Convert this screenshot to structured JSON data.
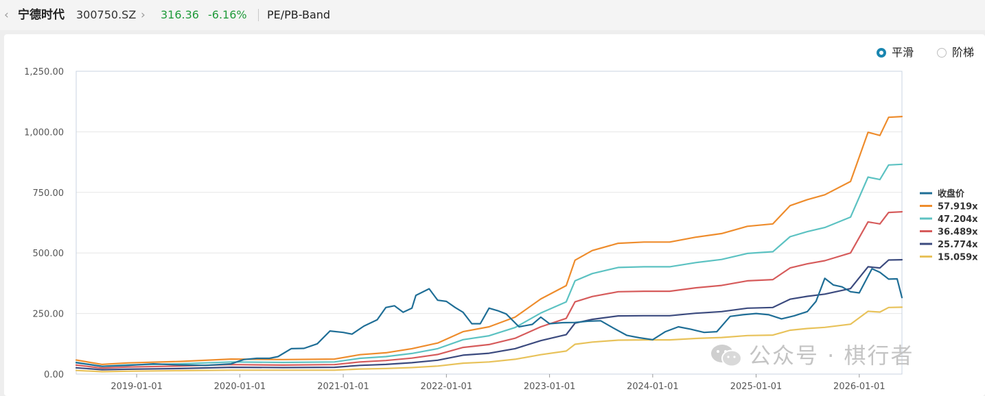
{
  "header": {
    "back_icon": "chevron-left-icon",
    "stock_name": "宁德时代",
    "stock_code": "300750.SZ",
    "forward_icon": "chevron-right-icon",
    "price": "316.36",
    "change_pct": "-6.16%",
    "change_color": "#1f9a3a",
    "view_title": "PE/PB-Band"
  },
  "toggle": {
    "options": [
      {
        "label": "平滑",
        "selected": true
      },
      {
        "label": "阶梯",
        "selected": false
      }
    ]
  },
  "watermark": {
    "icon": "wechat-icon",
    "text": "公众号 · 棋行者"
  },
  "chart_data": {
    "type": "line",
    "title": "",
    "xlabel": "",
    "ylabel": "",
    "ylim": [
      0,
      1250
    ],
    "yticks": [
      "0.00",
      "250.00",
      "500.00",
      "750.00",
      "1,000.00",
      "1,250.00"
    ],
    "xlim": [
      "2018-06-01",
      "2026-06-01"
    ],
    "xticks": [
      "2019-01-01",
      "2020-01-01",
      "2021-01-01",
      "2022-01-01",
      "2023-01-01",
      "2024-01-01",
      "2025-01-01",
      "2026-01-01"
    ],
    "grid": "horizontal",
    "legend_position": "right",
    "series": [
      {
        "name": "收盘价",
        "color": "#1f6e96",
        "points": [
          [
            "2018-06-01",
            47
          ],
          [
            "2018-09-01",
            32
          ],
          [
            "2018-12-01",
            36
          ],
          [
            "2019-03-01",
            42
          ],
          [
            "2019-06-01",
            38
          ],
          [
            "2019-09-01",
            36
          ],
          [
            "2019-12-01",
            42
          ],
          [
            "2020-01-15",
            60
          ],
          [
            "2020-03-01",
            65
          ],
          [
            "2020-04-15",
            65
          ],
          [
            "2020-05-15",
            72
          ],
          [
            "2020-07-01",
            105
          ],
          [
            "2020-08-15",
            106
          ],
          [
            "2020-10-01",
            125
          ],
          [
            "2020-11-15",
            178
          ],
          [
            "2021-01-01",
            172
          ],
          [
            "2021-02-01",
            165
          ],
          [
            "2021-03-15",
            198
          ],
          [
            "2021-05-01",
            224
          ],
          [
            "2021-06-01",
            275
          ],
          [
            "2021-07-01",
            282
          ],
          [
            "2021-08-01",
            255
          ],
          [
            "2021-09-01",
            272
          ],
          [
            "2021-09-15",
            325
          ],
          [
            "2021-11-01",
            352
          ],
          [
            "2021-12-01",
            305
          ],
          [
            "2022-01-01",
            300
          ],
          [
            "2022-02-01",
            275
          ],
          [
            "2022-03-01",
            255
          ],
          [
            "2022-04-01",
            208
          ],
          [
            "2022-05-01",
            208
          ],
          [
            "2022-06-01",
            272
          ],
          [
            "2022-07-01",
            262
          ],
          [
            "2022-08-01",
            248
          ],
          [
            "2022-09-15",
            195
          ],
          [
            "2022-11-01",
            205
          ],
          [
            "2022-12-01",
            235
          ],
          [
            "2023-01-01",
            208
          ],
          [
            "2023-02-15",
            212
          ],
          [
            "2023-04-01",
            213
          ],
          [
            "2023-05-15",
            218
          ],
          [
            "2023-07-01",
            220
          ],
          [
            "2023-08-15",
            190
          ],
          [
            "2023-10-01",
            160
          ],
          [
            "2023-11-15",
            150
          ],
          [
            "2024-01-01",
            142
          ],
          [
            "2024-02-15",
            175
          ],
          [
            "2024-04-01",
            195
          ],
          [
            "2024-05-15",
            185
          ],
          [
            "2024-07-01",
            172
          ],
          [
            "2024-08-15",
            175
          ],
          [
            "2024-10-01",
            238
          ],
          [
            "2024-11-15",
            245
          ],
          [
            "2025-01-01",
            250
          ],
          [
            "2025-02-15",
            245
          ],
          [
            "2025-04-01",
            228
          ],
          [
            "2025-05-15",
            240
          ],
          [
            "2025-07-01",
            258
          ],
          [
            "2025-08-01",
            300
          ],
          [
            "2025-09-01",
            395
          ],
          [
            "2025-10-01",
            368
          ],
          [
            "2025-11-01",
            360
          ],
          [
            "2025-12-01",
            340
          ],
          [
            "2026-01-01",
            335
          ],
          [
            "2026-02-15",
            435
          ],
          [
            "2026-03-15",
            420
          ],
          [
            "2026-04-15",
            392
          ],
          [
            "2026-05-15",
            393
          ],
          [
            "2026-06-01",
            316
          ]
        ]
      },
      {
        "name": "57.919x",
        "color": "#ee8c2c",
        "points": [
          [
            "2018-06-01",
            58
          ],
          [
            "2018-09-01",
            40
          ],
          [
            "2018-12-01",
            46
          ],
          [
            "2019-06-01",
            52
          ],
          [
            "2019-12-01",
            62
          ],
          [
            "2020-06-01",
            60
          ],
          [
            "2020-12-01",
            62
          ],
          [
            "2021-03-01",
            80
          ],
          [
            "2021-06-01",
            88
          ],
          [
            "2021-09-01",
            105
          ],
          [
            "2021-12-01",
            128
          ],
          [
            "2022-03-01",
            175
          ],
          [
            "2022-06-01",
            195
          ],
          [
            "2022-09-01",
            235
          ],
          [
            "2022-12-01",
            310
          ],
          [
            "2023-03-01",
            365
          ],
          [
            "2023-04-01",
            470
          ],
          [
            "2023-06-01",
            510
          ],
          [
            "2023-09-01",
            540
          ],
          [
            "2023-12-01",
            545
          ],
          [
            "2024-03-01",
            545
          ],
          [
            "2024-06-01",
            565
          ],
          [
            "2024-09-01",
            580
          ],
          [
            "2024-12-01",
            610
          ],
          [
            "2025-03-01",
            620
          ],
          [
            "2025-05-01",
            695
          ],
          [
            "2025-07-01",
            720
          ],
          [
            "2025-09-01",
            740
          ],
          [
            "2025-12-01",
            795
          ],
          [
            "2026-02-01",
            998
          ],
          [
            "2026-03-15",
            985
          ],
          [
            "2026-04-15",
            1060
          ],
          [
            "2026-06-01",
            1063
          ]
        ]
      },
      {
        "name": "47.204x",
        "color": "#5cc2c2",
        "points": [
          [
            "2018-06-01",
            48
          ],
          [
            "2018-09-01",
            32
          ],
          [
            "2018-12-01",
            38
          ],
          [
            "2019-06-01",
            42
          ],
          [
            "2019-12-01",
            50
          ],
          [
            "2020-06-01",
            48
          ],
          [
            "2020-12-01",
            50
          ],
          [
            "2021-03-01",
            65
          ],
          [
            "2021-06-01",
            72
          ],
          [
            "2021-09-01",
            85
          ],
          [
            "2021-12-01",
            105
          ],
          [
            "2022-03-01",
            142
          ],
          [
            "2022-06-01",
            158
          ],
          [
            "2022-09-01",
            192
          ],
          [
            "2022-12-01",
            252
          ],
          [
            "2023-03-01",
            298
          ],
          [
            "2023-04-01",
            385
          ],
          [
            "2023-06-01",
            415
          ],
          [
            "2023-09-01",
            440
          ],
          [
            "2023-12-01",
            443
          ],
          [
            "2024-03-01",
            443
          ],
          [
            "2024-06-01",
            460
          ],
          [
            "2024-09-01",
            473
          ],
          [
            "2024-12-01",
            498
          ],
          [
            "2025-03-01",
            505
          ],
          [
            "2025-05-01",
            567
          ],
          [
            "2025-07-01",
            588
          ],
          [
            "2025-09-01",
            605
          ],
          [
            "2025-12-01",
            648
          ],
          [
            "2026-02-01",
            813
          ],
          [
            "2026-03-15",
            803
          ],
          [
            "2026-04-15",
            863
          ],
          [
            "2026-06-01",
            866
          ]
        ]
      },
      {
        "name": "36.489x",
        "color": "#d65b5b",
        "points": [
          [
            "2018-06-01",
            37
          ],
          [
            "2018-09-01",
            25
          ],
          [
            "2018-12-01",
            29
          ],
          [
            "2019-06-01",
            33
          ],
          [
            "2019-12-01",
            39
          ],
          [
            "2020-06-01",
            37
          ],
          [
            "2020-12-01",
            39
          ],
          [
            "2021-03-01",
            50
          ],
          [
            "2021-06-01",
            56
          ],
          [
            "2021-09-01",
            66
          ],
          [
            "2021-12-01",
            81
          ],
          [
            "2022-03-01",
            110
          ],
          [
            "2022-06-01",
            122
          ],
          [
            "2022-09-01",
            148
          ],
          [
            "2022-12-01",
            195
          ],
          [
            "2023-03-01",
            230
          ],
          [
            "2023-04-01",
            298
          ],
          [
            "2023-06-01",
            320
          ],
          [
            "2023-09-01",
            340
          ],
          [
            "2023-12-01",
            342
          ],
          [
            "2024-03-01",
            342
          ],
          [
            "2024-06-01",
            356
          ],
          [
            "2024-09-01",
            366
          ],
          [
            "2024-12-01",
            385
          ],
          [
            "2025-03-01",
            390
          ],
          [
            "2025-05-01",
            438
          ],
          [
            "2025-07-01",
            455
          ],
          [
            "2025-09-01",
            468
          ],
          [
            "2025-12-01",
            500
          ],
          [
            "2026-02-01",
            628
          ],
          [
            "2026-03-15",
            620
          ],
          [
            "2026-04-15",
            667
          ],
          [
            "2026-06-01",
            670
          ]
        ]
      },
      {
        "name": "25.774x",
        "color": "#3b4a7e",
        "points": [
          [
            "2018-06-01",
            26
          ],
          [
            "2018-09-01",
            18
          ],
          [
            "2018-12-01",
            20
          ],
          [
            "2019-06-01",
            23
          ],
          [
            "2019-12-01",
            28
          ],
          [
            "2020-06-01",
            27
          ],
          [
            "2020-12-01",
            28
          ],
          [
            "2021-03-01",
            36
          ],
          [
            "2021-06-01",
            40
          ],
          [
            "2021-09-01",
            47
          ],
          [
            "2021-12-01",
            57
          ],
          [
            "2022-03-01",
            78
          ],
          [
            "2022-06-01",
            86
          ],
          [
            "2022-09-01",
            105
          ],
          [
            "2022-12-01",
            138
          ],
          [
            "2023-03-01",
            163
          ],
          [
            "2023-04-01",
            210
          ],
          [
            "2023-06-01",
            226
          ],
          [
            "2023-09-01",
            240
          ],
          [
            "2023-12-01",
            241
          ],
          [
            "2024-03-01",
            241
          ],
          [
            "2024-06-01",
            251
          ],
          [
            "2024-09-01",
            258
          ],
          [
            "2024-12-01",
            272
          ],
          [
            "2025-03-01",
            275
          ],
          [
            "2025-05-01",
            309
          ],
          [
            "2025-07-01",
            321
          ],
          [
            "2025-09-01",
            330
          ],
          [
            "2025-12-01",
            353
          ],
          [
            "2026-02-01",
            443
          ],
          [
            "2026-03-15",
            438
          ],
          [
            "2026-04-15",
            471
          ],
          [
            "2026-06-01",
            472
          ]
        ]
      },
      {
        "name": "15.059x",
        "color": "#e8c25a",
        "points": [
          [
            "2018-06-01",
            15
          ],
          [
            "2018-09-01",
            10
          ],
          [
            "2018-12-01",
            12
          ],
          [
            "2019-06-01",
            14
          ],
          [
            "2019-12-01",
            16
          ],
          [
            "2020-06-01",
            16
          ],
          [
            "2020-12-01",
            16
          ],
          [
            "2021-03-01",
            21
          ],
          [
            "2021-06-01",
            23
          ],
          [
            "2021-09-01",
            27
          ],
          [
            "2021-12-01",
            33
          ],
          [
            "2022-03-01",
            45
          ],
          [
            "2022-06-01",
            50
          ],
          [
            "2022-09-01",
            61
          ],
          [
            "2022-12-01",
            80
          ],
          [
            "2023-03-01",
            95
          ],
          [
            "2023-04-01",
            123
          ],
          [
            "2023-06-01",
            132
          ],
          [
            "2023-09-01",
            140
          ],
          [
            "2023-12-01",
            141
          ],
          [
            "2024-03-01",
            141
          ],
          [
            "2024-06-01",
            147
          ],
          [
            "2024-09-01",
            151
          ],
          [
            "2024-12-01",
            159
          ],
          [
            "2025-03-01",
            161
          ],
          [
            "2025-05-01",
            181
          ],
          [
            "2025-07-01",
            188
          ],
          [
            "2025-09-01",
            193
          ],
          [
            "2025-12-01",
            206
          ],
          [
            "2026-02-01",
            259
          ],
          [
            "2026-03-15",
            256
          ],
          [
            "2026-04-15",
            275
          ],
          [
            "2026-06-01",
            276
          ]
        ]
      }
    ]
  }
}
